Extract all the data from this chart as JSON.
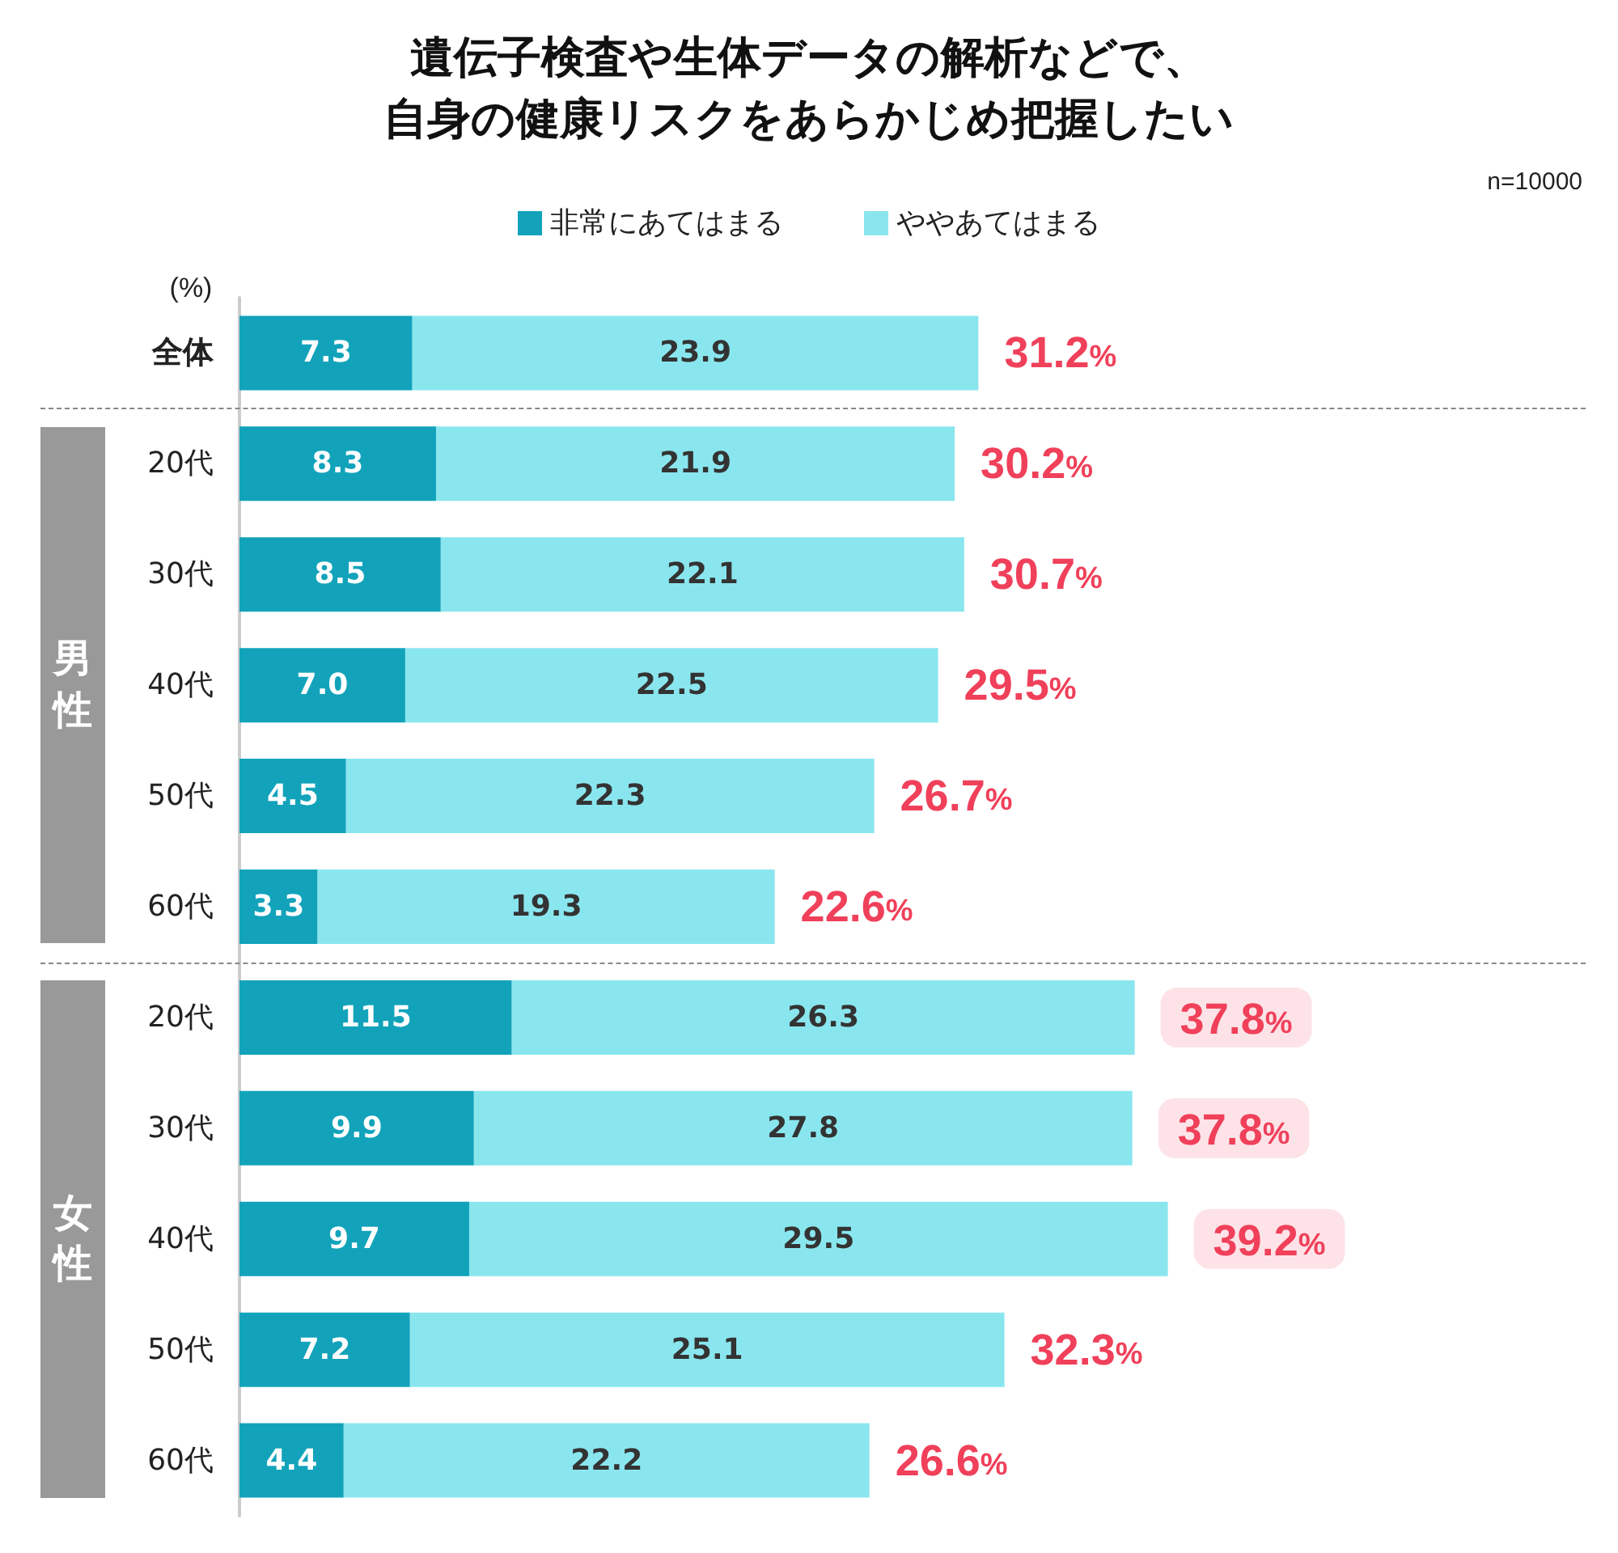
{
  "chart_data": {
    "type": "bar",
    "orientation": "horizontal",
    "stacked": true,
    "title": "遺伝子検査や生体データの解析などで、自身の健康リスクをあらかじめ把握したい",
    "categories": [
      "全体",
      "20代",
      "30代",
      "40代",
      "50代",
      "60代",
      "20代",
      "30代",
      "40代",
      "50代",
      "60代"
    ],
    "series": [
      {
        "name": "非常にあてはまる",
        "color": "#12a3bb",
        "values": [
          7.3,
          8.3,
          8.5,
          7.0,
          4.5,
          3.3,
          11.5,
          9.9,
          9.7,
          7.2,
          4.4
        ],
        "value_labels": [
          "7.3",
          "8.3",
          "8.5",
          "7.0",
          "4.5",
          "3.3",
          "11.5",
          "9.9",
          "9.7",
          "7.2",
          "4.4"
        ]
      },
      {
        "name": "ややあてはまる",
        "color": "#8ae6ee",
        "values": [
          23.9,
          21.9,
          22.1,
          22.5,
          22.3,
          19.3,
          26.3,
          27.8,
          29.5,
          25.1,
          22.2
        ],
        "value_labels": [
          "23.9",
          "21.9",
          "22.1",
          "22.5",
          "22.3",
          "19.3",
          "26.3",
          "27.8",
          "29.5",
          "25.1",
          "22.2"
        ]
      }
    ],
    "totals": [
      "31.2%",
      "30.2%",
      "30.7%",
      "29.5%",
      "26.7%",
      "22.6%",
      "37.8%",
      "37.8%",
      "39.2%",
      "32.3%",
      "26.6%"
    ],
    "annotations": [
      "n=10000",
      "(%)",
      "男性",
      "女性"
    ],
    "legend": "top"
  }
}
